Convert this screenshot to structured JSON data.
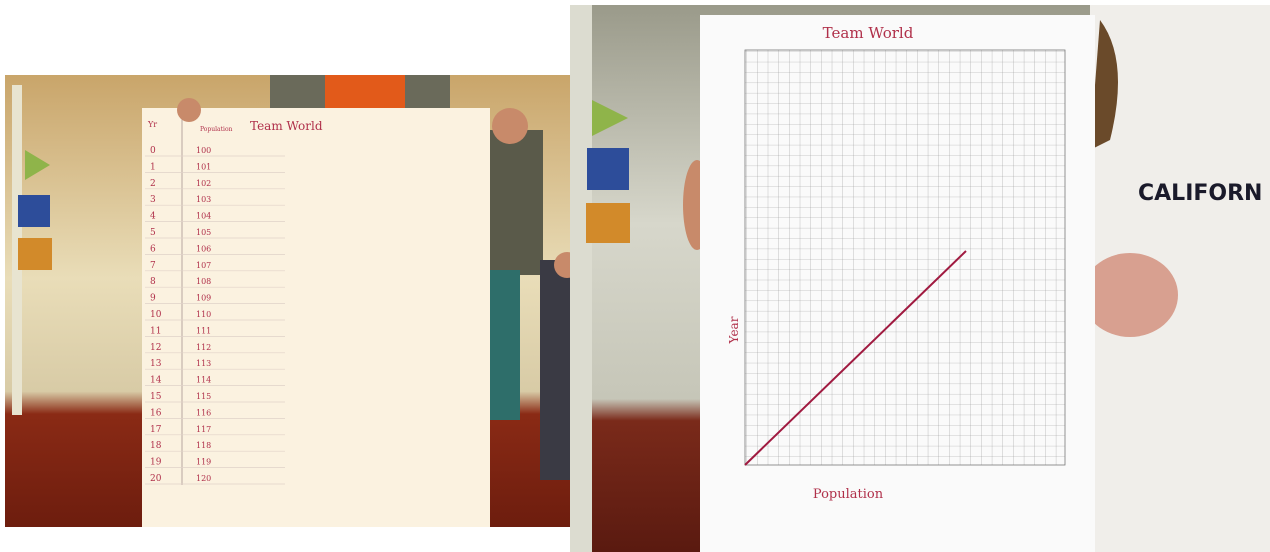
{
  "left_poster": {
    "title": "Team World",
    "columns": [
      "Yr",
      "Population"
    ],
    "rows": [
      [
        "0",
        "100"
      ],
      [
        "1",
        "101"
      ],
      [
        "2",
        "102"
      ],
      [
        "3",
        "103"
      ],
      [
        "4",
        "104"
      ],
      [
        "5",
        "105"
      ],
      [
        "6",
        "106"
      ],
      [
        "7",
        "107"
      ],
      [
        "8",
        "108"
      ],
      [
        "9",
        "109"
      ],
      [
        "10",
        "110"
      ],
      [
        "11",
        "111"
      ],
      [
        "12",
        "112"
      ],
      [
        "13",
        "113"
      ],
      [
        "14",
        "114"
      ],
      [
        "15",
        "115"
      ],
      [
        "16",
        "116"
      ],
      [
        "17",
        "117"
      ],
      [
        "18",
        "118"
      ],
      [
        "19",
        "119"
      ],
      [
        "20",
        "120"
      ]
    ]
  },
  "right_poster": {
    "title": "Team World",
    "y_axis_label": "Year",
    "x_axis_label": "Population"
  }
}
